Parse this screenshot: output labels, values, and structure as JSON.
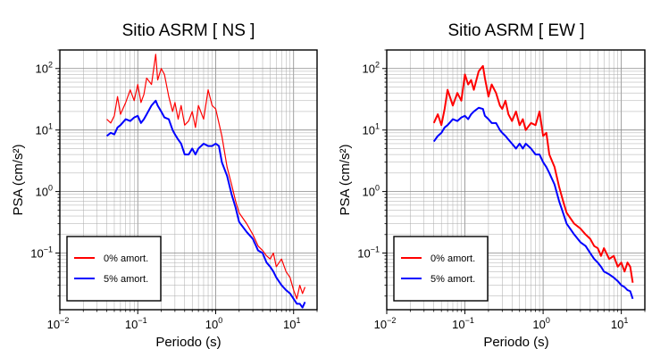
{
  "chart_data": [
    {
      "type": "line",
      "title": "Sitio ASRM [ NS ]",
      "xlabel": "Periodo (s)",
      "ylabel": "PSA (cm/s²)",
      "xscale": "log",
      "yscale": "log",
      "xlim": [
        0.01,
        20
      ],
      "ylim": [
        0.012,
        200
      ],
      "xticks": [
        {
          "value": 0.01,
          "base": "10",
          "exp": "−2"
        },
        {
          "value": 0.1,
          "base": "10",
          "exp": "−1"
        },
        {
          "value": 1,
          "base": "10",
          "exp": "0"
        },
        {
          "value": 10,
          "base": "10",
          "exp": "1"
        }
      ],
      "yticks": [
        {
          "value": 0.1,
          "base": "10",
          "exp": "−1"
        },
        {
          "value": 1,
          "base": "10",
          "exp": "0"
        },
        {
          "value": 10,
          "base": "10",
          "exp": "1"
        },
        {
          "value": 100,
          "base": "10",
          "exp": "2"
        }
      ],
      "grid": true,
      "legend": "bottom-left",
      "x": [
        0.04,
        0.045,
        0.05,
        0.055,
        0.06,
        0.07,
        0.08,
        0.09,
        0.1,
        0.11,
        0.12,
        0.13,
        0.15,
        0.17,
        0.18,
        0.2,
        0.22,
        0.25,
        0.28,
        0.3,
        0.33,
        0.36,
        0.4,
        0.45,
        0.5,
        0.55,
        0.6,
        0.7,
        0.8,
        0.9,
        1.0,
        1.1,
        1.2,
        1.4,
        1.6,
        1.8,
        2.0,
        2.5,
        3.0,
        3.5,
        4.0,
        4.5,
        5.0,
        5.5,
        6.0,
        7.0,
        8.0,
        9.0,
        10,
        11,
        12,
        13,
        14
      ],
      "series": [
        {
          "name": "0% amort.",
          "color": "#ff0000",
          "width": 1.2,
          "values": [
            15,
            13,
            17,
            35,
            18,
            28,
            45,
            30,
            55,
            28,
            38,
            70,
            55,
            170,
            65,
            100,
            80,
            35,
            20,
            28,
            15,
            25,
            12,
            14,
            20,
            11,
            25,
            15,
            45,
            25,
            22,
            13,
            8,
            2.5,
            1.3,
            0.7,
            0.45,
            0.3,
            0.2,
            0.13,
            0.11,
            0.09,
            0.08,
            0.1,
            0.06,
            0.08,
            0.05,
            0.04,
            0.025,
            0.018,
            0.03,
            0.022,
            0.028
          ]
        },
        {
          "name": "5% amort.",
          "color": "#0000ff",
          "width": 2,
          "values": [
            8,
            9,
            8.5,
            11,
            12,
            15,
            14,
            16,
            17,
            13,
            15,
            18,
            25,
            30,
            25,
            20,
            16,
            15,
            10,
            8.5,
            7,
            6,
            4,
            4,
            5,
            4,
            5,
            6,
            5.5,
            5.5,
            6,
            5.5,
            3,
            1.8,
            0.9,
            0.55,
            0.32,
            0.22,
            0.17,
            0.11,
            0.1,
            0.07,
            0.06,
            0.05,
            0.04,
            0.03,
            0.025,
            0.022,
            0.018,
            0.015,
            0.015,
            0.013,
            0.016
          ]
        }
      ]
    },
    {
      "type": "line",
      "title": "Sitio ASRM [ EW ]",
      "xlabel": "Periodo (s)",
      "ylabel": "PSA (cm/s²)",
      "xscale": "log",
      "yscale": "log",
      "xlim": [
        0.01,
        20
      ],
      "ylim": [
        0.012,
        200
      ],
      "xticks": [
        {
          "value": 0.01,
          "base": "10",
          "exp": "−2"
        },
        {
          "value": 0.1,
          "base": "10",
          "exp": "−1"
        },
        {
          "value": 1,
          "base": "10",
          "exp": "0"
        },
        {
          "value": 10,
          "base": "10",
          "exp": "1"
        }
      ],
      "yticks": [
        {
          "value": 0.1,
          "base": "10",
          "exp": "−1"
        },
        {
          "value": 1,
          "base": "10",
          "exp": "0"
        },
        {
          "value": 10,
          "base": "10",
          "exp": "1"
        },
        {
          "value": 100,
          "base": "10",
          "exp": "2"
        }
      ],
      "grid": true,
      "legend": "bottom-left",
      "x": [
        0.04,
        0.045,
        0.05,
        0.055,
        0.06,
        0.07,
        0.08,
        0.09,
        0.1,
        0.11,
        0.12,
        0.13,
        0.15,
        0.17,
        0.18,
        0.2,
        0.22,
        0.25,
        0.28,
        0.3,
        0.33,
        0.36,
        0.4,
        0.45,
        0.5,
        0.55,
        0.6,
        0.7,
        0.8,
        0.9,
        1.0,
        1.1,
        1.2,
        1.4,
        1.6,
        1.8,
        2.0,
        2.5,
        3.0,
        3.5,
        4.0,
        4.5,
        5.0,
        5.5,
        6.0,
        7.0,
        8.0,
        9.0,
        10,
        11,
        12,
        13,
        14
      ],
      "series": [
        {
          "name": "0% amort.",
          "color": "#ff0000",
          "width": 2,
          "values": [
            13,
            18,
            12,
            22,
            45,
            25,
            40,
            30,
            80,
            55,
            65,
            45,
            90,
            110,
            70,
            35,
            55,
            40,
            25,
            22,
            30,
            18,
            14,
            20,
            12,
            15,
            10,
            13,
            12,
            20,
            8,
            9,
            4,
            2.5,
            1.2,
            0.7,
            0.45,
            0.3,
            0.25,
            0.2,
            0.17,
            0.13,
            0.12,
            0.09,
            0.12,
            0.08,
            0.09,
            0.06,
            0.07,
            0.05,
            0.07,
            0.06,
            0.033
          ]
        },
        {
          "name": "5% amort.",
          "color": "#0000ff",
          "width": 2,
          "values": [
            6.5,
            8,
            9,
            11,
            12,
            15,
            14,
            16,
            17,
            15,
            18,
            20,
            23,
            22,
            17,
            15,
            13,
            13,
            10,
            9,
            8,
            7,
            6,
            5,
            6,
            5,
            6,
            5,
            4,
            4,
            3,
            2.5,
            2,
            1.3,
            0.7,
            0.45,
            0.3,
            0.2,
            0.15,
            0.13,
            0.1,
            0.08,
            0.07,
            0.06,
            0.05,
            0.045,
            0.04,
            0.035,
            0.03,
            0.028,
            0.025,
            0.024,
            0.018
          ]
        }
      ]
    }
  ]
}
